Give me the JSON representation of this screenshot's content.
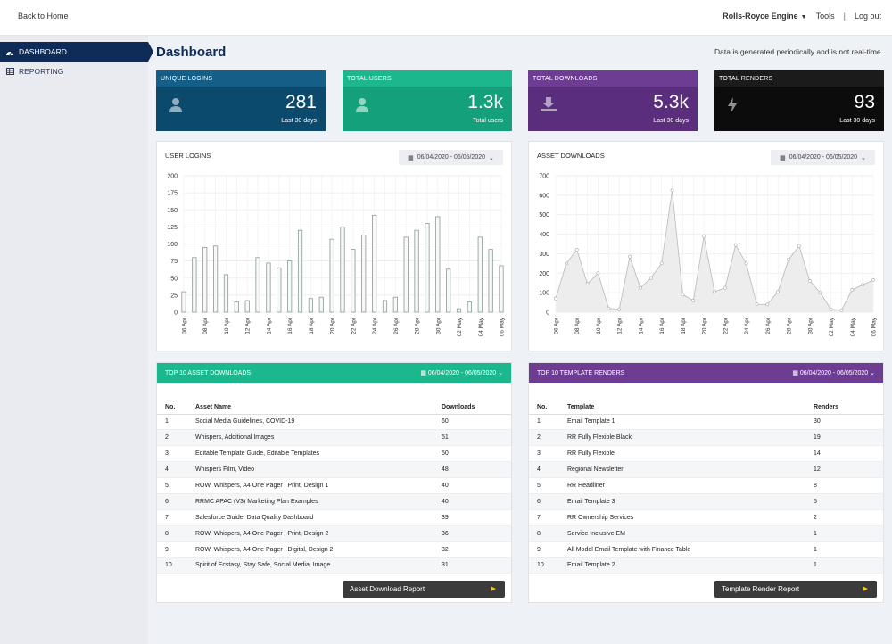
{
  "topbar": {
    "back": "Back to Home",
    "brand": "Rolls-Royce Engine",
    "tools": "Tools",
    "sep": "|",
    "logout": "Log out"
  },
  "sidebar": {
    "items": [
      {
        "label": "DASHBOARD",
        "icon": "dashboard-icon"
      },
      {
        "label": "REPORTING",
        "icon": "table-icon"
      }
    ]
  },
  "main": {
    "title": "Dashboard",
    "note": "Data is generated periodically and is not real-time."
  },
  "stats": [
    {
      "label": "UNIQUE LOGINS",
      "value": "281",
      "sub": "Last 30 days",
      "icon": "user-icon"
    },
    {
      "label": "TOTAL USERS",
      "value": "1.3k",
      "sub": "Total users",
      "icon": "user-icon"
    },
    {
      "label": "TOTAL DOWNLOADS",
      "value": "5.3k",
      "sub": "Last 30 days",
      "icon": "download-icon"
    },
    {
      "label": "TOTAL RENDERS",
      "value": "93",
      "sub": "Last 30 days",
      "icon": "bolt-icon"
    }
  ],
  "date_range": "06/04/2020 - 06/05/2020",
  "colors": {
    "navy": "#0f2b57",
    "green": "#1db78d",
    "purple": "#6d3d94",
    "black": "#0c0c0c",
    "button_arrow": "#f5c518"
  },
  "chart_data": [
    {
      "type": "bar",
      "title": "USER LOGINS",
      "categories": [
        "06 Apr",
        "07 Apr",
        "08 Apr",
        "09 Apr",
        "10 Apr",
        "11 Apr",
        "12 Apr",
        "13 Apr",
        "14 Apr",
        "15 Apr",
        "16 Apr",
        "17 Apr",
        "18 Apr",
        "19 Apr",
        "20 Apr",
        "21 Apr",
        "22 Apr",
        "23 Apr",
        "24 Apr",
        "25 Apr",
        "26 Apr",
        "27 Apr",
        "28 Apr",
        "29 Apr",
        "30 Apr",
        "01 May",
        "02 May",
        "03 May",
        "04 May",
        "05 May",
        "06 May"
      ],
      "tick_labels": [
        "06 Apr",
        "08 Apr",
        "10 Apr",
        "12 Apr",
        "14 Apr",
        "16 Apr",
        "18 Apr",
        "20 Apr",
        "22 Apr",
        "24 Apr",
        "26 Apr",
        "28 Apr",
        "30 Apr",
        "02 May",
        "04 May",
        "06 May"
      ],
      "values": [
        30,
        80,
        95,
        97,
        55,
        15,
        17,
        80,
        72,
        65,
        75,
        120,
        20,
        22,
        107,
        125,
        92,
        113,
        142,
        17,
        22,
        110,
        120,
        130,
        140,
        63,
        5,
        15,
        110,
        92,
        68
      ],
      "ylim": [
        0,
        200
      ],
      "yticks": [
        0,
        25,
        50,
        75,
        100,
        125,
        150,
        175,
        200
      ],
      "grid": true
    },
    {
      "type": "area",
      "title": "ASSET DOWNLOADS",
      "categories": [
        "06 Apr",
        "07 Apr",
        "08 Apr",
        "09 Apr",
        "10 Apr",
        "11 Apr",
        "12 Apr",
        "13 Apr",
        "14 Apr",
        "15 Apr",
        "16 Apr",
        "17 Apr",
        "18 Apr",
        "19 Apr",
        "20 Apr",
        "21 Apr",
        "22 Apr",
        "23 Apr",
        "24 Apr",
        "25 Apr",
        "26 Apr",
        "27 Apr",
        "28 Apr",
        "29 Apr",
        "30 Apr",
        "01 May",
        "02 May",
        "03 May",
        "04 May",
        "05 May",
        "06 May"
      ],
      "tick_labels": [
        "06 Apr",
        "08 Apr",
        "10 Apr",
        "12 Apr",
        "14 Apr",
        "16 Apr",
        "18 Apr",
        "20 Apr",
        "22 Apr",
        "24 Apr",
        "26 Apr",
        "28 Apr",
        "30 Apr",
        "02 May",
        "04 May",
        "06 May"
      ],
      "values": [
        70,
        250,
        320,
        145,
        200,
        20,
        15,
        285,
        125,
        175,
        250,
        625,
        90,
        60,
        390,
        105,
        125,
        345,
        250,
        40,
        40,
        105,
        270,
        340,
        160,
        100,
        15,
        10,
        115,
        140,
        165
      ],
      "ylim": [
        0,
        700
      ],
      "yticks": [
        0,
        100,
        200,
        300,
        400,
        500,
        600,
        700
      ],
      "grid": true
    }
  ],
  "downloads_table": {
    "header": "TOP 10 ASSET DOWNLOADS",
    "columns": [
      "No.",
      "Asset Name",
      "Downloads"
    ],
    "rows": [
      [
        "1",
        "Social Media Guidelines, COVID-19",
        "60"
      ],
      [
        "2",
        "Whispers, Additional Images",
        "51"
      ],
      [
        "3",
        "Editable Template Guide, Editable Templates",
        "50"
      ],
      [
        "4",
        "Whispers Film, Video",
        "48"
      ],
      [
        "5",
        "ROW, Whispers, A4 One Pager , Print, Design 1",
        "40"
      ],
      [
        "6",
        "RRMC APAC (V3) Marketing Plan Examples",
        "40"
      ],
      [
        "7",
        "Salesforce Guide, Data Quality Dashboard",
        "39"
      ],
      [
        "8",
        "ROW, Whispers, A4 One Pager , Print, Design 2",
        "36"
      ],
      [
        "9",
        "ROW, Whispers, A4 One Pager , Digital, Design 2",
        "32"
      ],
      [
        "10",
        "Spirit of Ecstasy, Stay Safe, Social Media, Image",
        "31"
      ]
    ],
    "button": "Asset Download Report"
  },
  "renders_table": {
    "header": "TOP 10 TEMPLATE RENDERS",
    "columns": [
      "No.",
      "Template",
      "Renders"
    ],
    "rows": [
      [
        "1",
        "Email Template 1",
        "30"
      ],
      [
        "2",
        "RR Fully Flexible Black",
        "19"
      ],
      [
        "3",
        "RR Fully Flexible",
        "14"
      ],
      [
        "4",
        "Regional Newsletter",
        "12"
      ],
      [
        "5",
        "RR Headliner",
        "8"
      ],
      [
        "6",
        "Email Template 3",
        "5"
      ],
      [
        "7",
        "RR Ownership Services",
        "2"
      ],
      [
        "8",
        "Service Inclusive EM",
        "1"
      ],
      [
        "9",
        "All Model Email Template with Finance Table",
        "1"
      ],
      [
        "10",
        "Email Template 2",
        "1"
      ]
    ],
    "button": "Template Render Report"
  }
}
